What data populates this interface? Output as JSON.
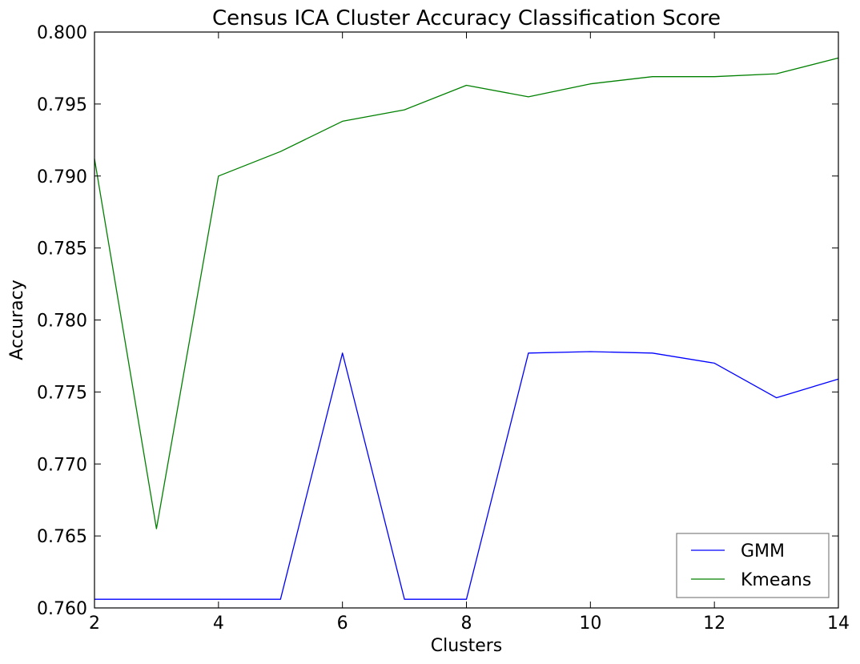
{
  "chart_data": {
    "type": "line",
    "title": "Census ICA Cluster Accuracy Classification Score",
    "xlabel": "Clusters",
    "ylabel": "Accuracy",
    "xlim": [
      2,
      14
    ],
    "ylim": [
      0.76,
      0.8
    ],
    "x_ticks": [
      2,
      4,
      6,
      8,
      10,
      12,
      14
    ],
    "y_ticks": [
      0.76,
      0.765,
      0.77,
      0.775,
      0.78,
      0.785,
      0.79,
      0.795,
      0.8
    ],
    "x_tick_labels": [
      "2",
      "4",
      "6",
      "8",
      "10",
      "12",
      "14"
    ],
    "y_tick_labels": [
      "0.760",
      "0.765",
      "0.770",
      "0.775",
      "0.780",
      "0.785",
      "0.790",
      "0.795",
      "0.800"
    ],
    "grid": false,
    "legend_position": "lower-right",
    "x": [
      2,
      3,
      4,
      5,
      6,
      7,
      8,
      9,
      10,
      11,
      12,
      13,
      14
    ],
    "series": [
      {
        "name": "GMM",
        "color": "#0000ff",
        "values": [
          0.7606,
          0.7606,
          0.7606,
          0.7606,
          0.7777,
          0.7606,
          0.7606,
          0.7777,
          0.7778,
          0.7777,
          0.777,
          0.7746,
          0.7759
        ]
      },
      {
        "name": "Kmeans",
        "color": "#008000",
        "values": [
          0.7912,
          0.7655,
          0.79,
          0.7917,
          0.7938,
          0.7946,
          0.7963,
          0.7955,
          0.7964,
          0.7969,
          0.7969,
          0.7971,
          0.7982
        ]
      }
    ]
  }
}
